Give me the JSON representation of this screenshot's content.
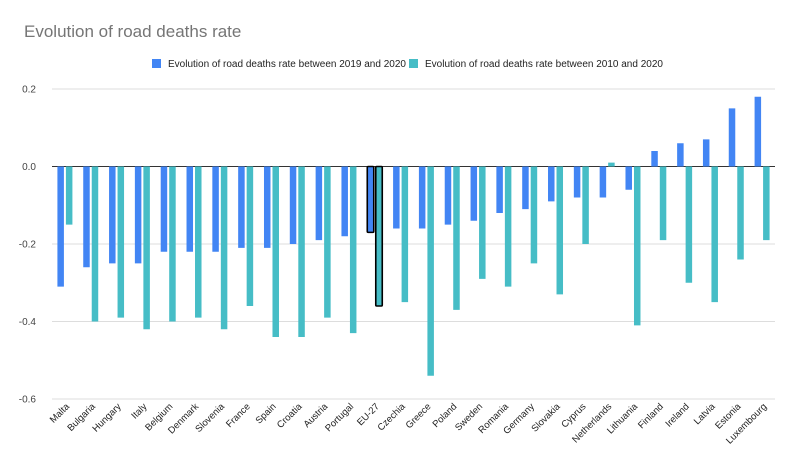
{
  "chart_data": {
    "type": "bar",
    "title": "Evolution of road deaths rate",
    "xlabel": "",
    "ylabel": "",
    "ylim": [
      -0.6,
      0.2
    ],
    "yticks": [
      0.2,
      0.0,
      -0.2,
      -0.4,
      -0.6
    ],
    "ytick_labels": [
      "0.2",
      "0.0",
      "-0.2",
      "-0.4",
      "-0.6"
    ],
    "grid": true,
    "legend_position": "top",
    "highlight_category": "EU-27",
    "categories": [
      "Malta",
      "Bulgaria",
      "Hungary",
      "Italy",
      "Belgium",
      "Denmark",
      "Slovenia",
      "France",
      "Spain",
      "Croatia",
      "Austria",
      "Portugal",
      "EU-27",
      "Czechia",
      "Greece",
      "Poland",
      "Sweden",
      "Romania",
      "Germany",
      "Slovakia",
      "Cyprus",
      "Netherlands",
      "Lithuania",
      "Finland",
      "Ireland",
      "Latvia",
      "Estonia",
      "Luxembourg"
    ],
    "series": [
      {
        "name": "Evolution of road deaths rate between 2019 and 2020",
        "color": "#4285f4",
        "values": [
          -0.31,
          -0.26,
          -0.25,
          -0.25,
          -0.22,
          -0.22,
          -0.22,
          -0.21,
          -0.21,
          -0.2,
          -0.19,
          -0.18,
          -0.17,
          -0.16,
          -0.16,
          -0.15,
          -0.14,
          -0.12,
          -0.11,
          -0.09,
          -0.08,
          -0.08,
          -0.06,
          0.04,
          0.06,
          0.07,
          0.15,
          0.18
        ]
      },
      {
        "name": "Evolution of road deaths rate between 2010 and 2020",
        "color": "#46bdc6",
        "values": [
          -0.15,
          -0.4,
          -0.39,
          -0.42,
          -0.4,
          -0.39,
          -0.42,
          -0.36,
          -0.44,
          -0.44,
          -0.39,
          -0.43,
          -0.36,
          -0.35,
          -0.54,
          -0.37,
          -0.29,
          -0.31,
          -0.25,
          -0.33,
          -0.2,
          0.01,
          -0.41,
          -0.19,
          -0.3,
          -0.35,
          -0.24,
          -0.19
        ]
      }
    ]
  }
}
